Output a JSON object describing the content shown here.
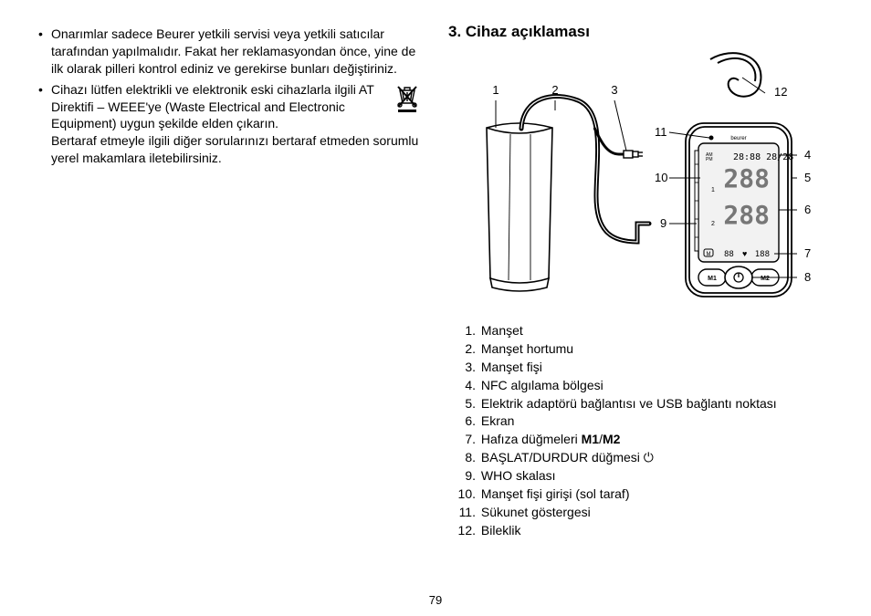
{
  "left": {
    "bullet1": "Onarımlar sadece Beurer yetkili servisi veya yetkili satıcılar tarafından yapılmalıdır. Fakat her reklamasyondan önce, yine de ilk olarak pilleri kontrol ediniz ve gerekirse bunları değiştiriniz.",
    "bullet2a": "Cihazı lütfen elektrikli ve elektronik eski cihazlarla ilgili AT Direktifi – WEEE'ye (Waste Electrical and Electronic Equipment) uygun şekilde elden çıkarın.",
    "bullet2b": "Bertaraf etmeyle ilgili diğer sorularınızı bertaraf etmeden sorumlu yerel makamlara iletebilirsiniz."
  },
  "right": {
    "title": "3. Cihaz açıklaması",
    "labels": [
      "1",
      "2",
      "3",
      "4",
      "5",
      "6",
      "7",
      "8",
      "9",
      "10",
      "11",
      "12"
    ],
    "legend": [
      {
        "n": "1.",
        "t": "Manşet"
      },
      {
        "n": "2.",
        "t": "Manşet hortumu"
      },
      {
        "n": "3.",
        "t": "Manşet fişi"
      },
      {
        "n": "4.",
        "t": "NFC algılama bölgesi"
      },
      {
        "n": "5.",
        "t": "Elektrik adaptörü bağlantısı ve USB bağlantı noktası"
      },
      {
        "n": "6.",
        "t": "Ekran"
      },
      {
        "n": "7.",
        "t_html": "Hafıza düğmeleri <b>M1</b>/<b>M2</b>"
      },
      {
        "n": "8.",
        "t": "BAŞLAT/DURDUR düğmesi ⏻"
      },
      {
        "n": "9.",
        "t": "WHO skalası"
      },
      {
        "n": "10.",
        "t": "Manşet fişi girişi (sol taraf)"
      },
      {
        "n": "11.",
        "t": "Sükunet göstergesi"
      },
      {
        "n": "12.",
        "t": "Bileklik"
      }
    ]
  },
  "pageNumber": "79",
  "colors": {
    "stroke": "#000000",
    "fill_light": "#ffffff",
    "screen_bg": "#f2f2f2"
  }
}
